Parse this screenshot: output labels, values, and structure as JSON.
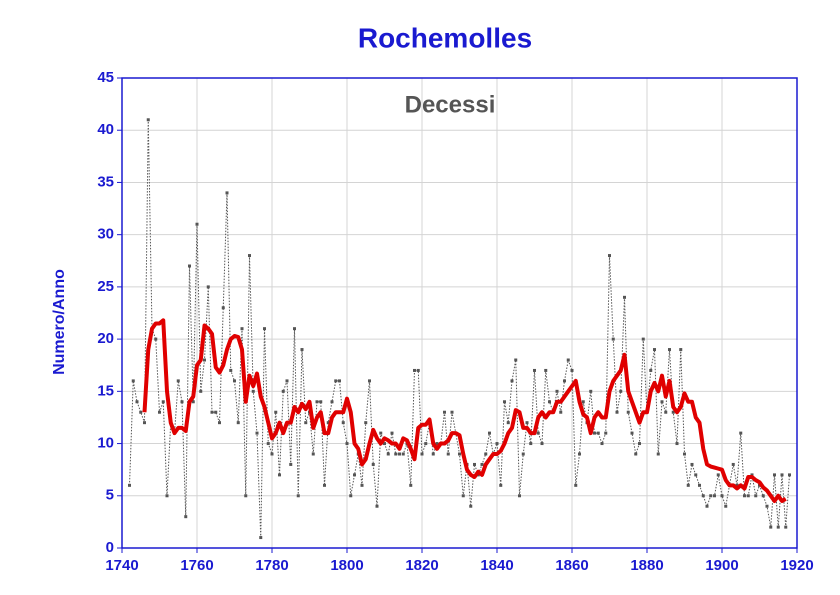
{
  "chart_data": {
    "type": "line",
    "title": "Rochemolles",
    "annotation": "Decessi",
    "ylabel": "Numero/Anno",
    "x": [
      1742,
      1743,
      1744,
      1745,
      1746,
      1747,
      1748,
      1749,
      1750,
      1751,
      1752,
      1753,
      1754,
      1755,
      1756,
      1757,
      1758,
      1759,
      1760,
      1761,
      1762,
      1763,
      1764,
      1765,
      1766,
      1767,
      1768,
      1769,
      1770,
      1771,
      1772,
      1773,
      1774,
      1775,
      1776,
      1777,
      1778,
      1779,
      1780,
      1781,
      1782,
      1783,
      1784,
      1785,
      1786,
      1787,
      1788,
      1789,
      1790,
      1791,
      1792,
      1793,
      1794,
      1795,
      1796,
      1797,
      1798,
      1799,
      1800,
      1801,
      1802,
      1803,
      1804,
      1805,
      1806,
      1807,
      1808,
      1809,
      1810,
      1811,
      1812,
      1813,
      1814,
      1815,
      1816,
      1817,
      1818,
      1819,
      1820,
      1821,
      1822,
      1823,
      1824,
      1825,
      1826,
      1827,
      1828,
      1829,
      1830,
      1831,
      1832,
      1833,
      1834,
      1835,
      1836,
      1837,
      1838,
      1839,
      1840,
      1841,
      1842,
      1843,
      1844,
      1845,
      1846,
      1847,
      1848,
      1849,
      1850,
      1851,
      1852,
      1853,
      1854,
      1855,
      1856,
      1857,
      1858,
      1859,
      1860,
      1861,
      1862,
      1863,
      1864,
      1865,
      1866,
      1867,
      1868,
      1869,
      1870,
      1871,
      1872,
      1873,
      1874,
      1875,
      1876,
      1877,
      1878,
      1879,
      1880,
      1881,
      1882,
      1883,
      1884,
      1885,
      1886,
      1887,
      1888,
      1889,
      1890,
      1891,
      1892,
      1893,
      1894,
      1895,
      1896,
      1897,
      1898,
      1899,
      1900,
      1901,
      1902,
      1903,
      1904,
      1905,
      1906,
      1907,
      1908,
      1909,
      1910,
      1911,
      1912,
      1913,
      1914,
      1915,
      1916,
      1917,
      1918
    ],
    "series": [
      {
        "color": "#555555",
        "style": "dotted",
        "markers": true,
        "values": [
          6,
          16,
          14,
          13,
          12,
          41,
          21,
          20,
          13,
          14,
          5,
          12,
          11,
          16,
          14,
          3,
          27,
          14,
          31,
          15,
          18,
          25,
          13,
          13,
          12,
          23,
          34,
          17,
          16,
          12,
          21,
          5,
          28,
          15,
          11,
          1,
          21,
          10,
          9,
          13,
          7,
          15,
          16,
          8,
          21,
          5,
          19,
          12,
          13,
          9,
          14,
          14,
          6,
          12,
          14,
          16,
          16,
          12,
          10,
          5,
          7,
          9,
          6,
          12,
          16,
          8,
          4,
          11,
          10,
          9,
          11,
          9,
          9,
          9,
          10,
          6,
          17,
          17,
          9,
          10,
          12,
          9,
          10,
          10,
          13,
          9,
          13,
          11,
          9,
          5,
          8,
          4,
          8,
          7,
          8,
          9,
          11,
          9,
          10,
          6,
          14,
          12,
          16,
          18,
          5,
          9,
          12,
          10,
          17,
          11,
          10,
          17,
          14,
          13,
          15,
          13,
          16,
          18,
          17,
          6,
          9,
          14,
          12,
          15,
          11,
          11,
          10,
          11,
          28,
          20,
          13,
          15,
          24,
          13,
          11,
          9,
          10,
          20,
          13,
          17,
          19,
          9,
          14,
          13,
          19,
          13,
          10,
          19,
          9,
          6,
          8,
          7,
          6,
          5,
          4,
          5,
          5,
          7,
          5,
          4,
          6,
          8,
          6,
          11,
          5,
          5,
          7,
          5,
          6,
          5,
          4,
          2,
          7,
          2,
          7,
          2,
          7
        ]
      },
      {
        "color": "#e00000",
        "style": "solid",
        "markers": false,
        "values": [
          null,
          null,
          null,
          null,
          13,
          19,
          21,
          21.5,
          21.5,
          21.8,
          15,
          12,
          11,
          11.5,
          11.5,
          11.2,
          14,
          14.5,
          17.5,
          18,
          21.3,
          21,
          20.5,
          17.3,
          16.8,
          17.5,
          19,
          20,
          20.3,
          20.2,
          19,
          14,
          16.5,
          15.5,
          16.7,
          14.5,
          13.5,
          12,
          10.5,
          11,
          12,
          11,
          12,
          12,
          13.5,
          13,
          13.8,
          13.3,
          14,
          11.5,
          12.5,
          13,
          11,
          11,
          12.5,
          13,
          13,
          13,
          14.3,
          13,
          10,
          9.5,
          8,
          8.5,
          10,
          11.3,
          10.5,
          10,
          10.5,
          10.3,
          10,
          10,
          9.5,
          10.5,
          10.3,
          9.5,
          8.5,
          11.5,
          11.8,
          11.8,
          12.3,
          10,
          9.5,
          10,
          10,
          10.3,
          11,
          11,
          10.8,
          9,
          7.5,
          7,
          6.8,
          7.3,
          7,
          8,
          8.5,
          9,
          9,
          9.3,
          10,
          11,
          11.5,
          13.2,
          13,
          11.5,
          11.5,
          11,
          11,
          12.5,
          13,
          12.5,
          13,
          13,
          14,
          14,
          14.5,
          15,
          15.5,
          16,
          14,
          12.8,
          12.5,
          11,
          12.5,
          13,
          12.5,
          12.5,
          15,
          16,
          16.5,
          17,
          18.5,
          15,
          14,
          13,
          12,
          13,
          13,
          15,
          15.8,
          15,
          16.5,
          14.5,
          16,
          13.5,
          13,
          13.5,
          14.8,
          14,
          14,
          12.5,
          12,
          9.5,
          8,
          7.8,
          7.7,
          7.6,
          7.5,
          6.5,
          6,
          6,
          5.7,
          6,
          5.7,
          6.8,
          6.8,
          6.5,
          6.3,
          5.8,
          5.5,
          5,
          4.5,
          5,
          4.5,
          4.7,
          null
        ]
      }
    ],
    "xlim": [
      1740,
      1920
    ],
    "xticks": [
      1740,
      1760,
      1780,
      1800,
      1820,
      1840,
      1860,
      1880,
      1900,
      1920
    ],
    "ylim": [
      0,
      45
    ],
    "yticks": [
      0,
      5,
      10,
      15,
      20,
      25,
      30,
      35,
      40,
      45
    ],
    "grid": true,
    "axis_color": "#1a1ad0"
  }
}
